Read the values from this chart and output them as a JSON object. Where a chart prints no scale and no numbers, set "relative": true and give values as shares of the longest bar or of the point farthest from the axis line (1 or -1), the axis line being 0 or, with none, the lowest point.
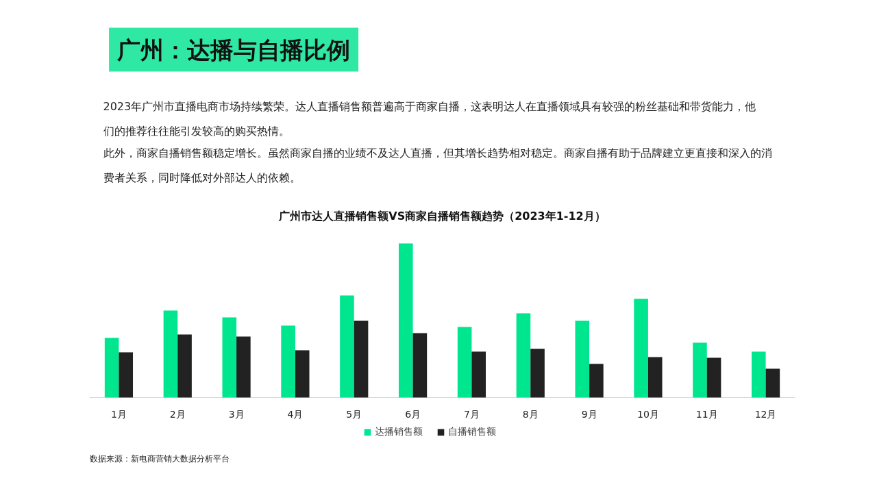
{
  "chart_data": {
    "type": "bar",
    "title": "广州：达播与自播比例",
    "subtitle": "广州市达人直播销售额VS商家自播销售额趋势（2023年1-12月）",
    "annotations": [
      "2023年广州市直播电商市场持续繁荣。达人直播销售额普遍高于商家自播，这表明达人在直播领域具有较强的粉丝基础和带货能力，他们的推荐往往能引发较高的购买热情。",
      "此外，商家自播销售额稳定增长。虽然商家自播的业绩不及达人直播，但其增长趋势相对稳定。商家自播有助于品牌建立更直接和深入的消费者关系，同时降低对外部达人的依赖。",
      "数据来源：新电商营销大数据分析平台"
    ],
    "categories": [
      "1月",
      "2月",
      "3月",
      "4月",
      "5月",
      "6月",
      "7月",
      "8月",
      "9月",
      "10月",
      "11月",
      "12月"
    ],
    "relative": true,
    "grid": false,
    "legend": "bottom",
    "series": [
      {
        "name": "达播销售额",
        "color": "#00e68f",
        "values": [
          0.387,
          0.564,
          0.52,
          0.467,
          0.662,
          1,
          0.458,
          0.547,
          0.498,
          0.64,
          0.356,
          0.298
        ]
      },
      {
        "name": "自播销售额",
        "color": "#222222",
        "values": [
          0.293,
          0.409,
          0.396,
          0.307,
          0.498,
          0.418,
          0.298,
          0.316,
          0.218,
          0.262,
          0.258,
          0.187
        ]
      }
    ]
  }
}
